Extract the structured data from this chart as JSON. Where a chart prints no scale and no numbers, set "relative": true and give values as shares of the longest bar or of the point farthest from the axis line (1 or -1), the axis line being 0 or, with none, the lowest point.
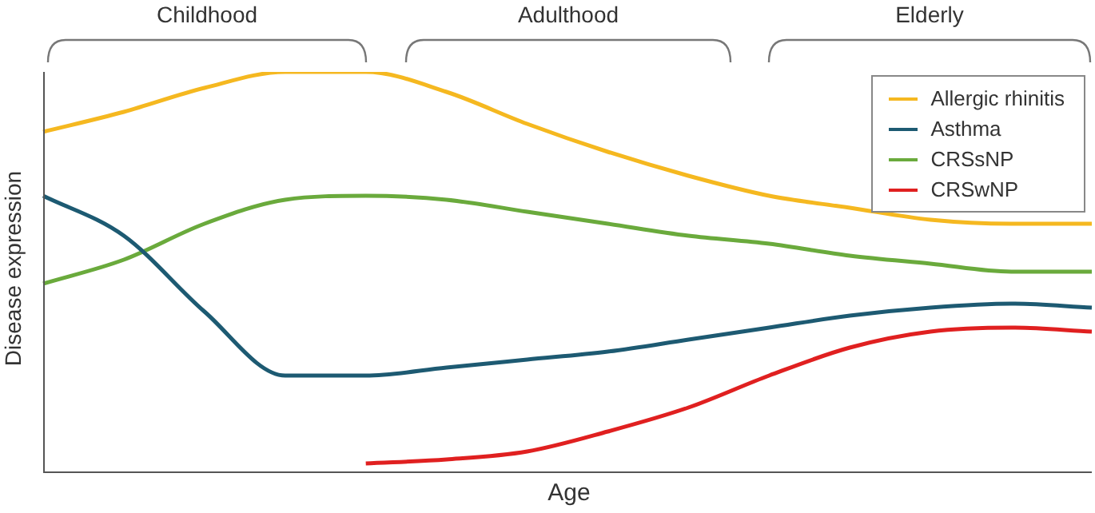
{
  "chart_data": {
    "type": "line",
    "relative": true,
    "xlabel": "Age",
    "ylabel": "Disease expression",
    "annotations": [
      "Childhood",
      "Adulthood",
      "Elderly"
    ],
    "legend": "top right",
    "marker": "none",
    "line_style": "solid",
    "categories": [
      null,
      null,
      null,
      null,
      null,
      null,
      null,
      null,
      null,
      null,
      null,
      null,
      null,
      null
    ],
    "series": [
      {
        "name": "Allergic rhinitis",
        "color": "#f5b820",
        "values": [
          0.85,
          0.9,
          0.96,
          1.0,
          1.0,
          0.95,
          0.87,
          0.8,
          0.74,
          0.69,
          0.66,
          0.63,
          0.62,
          0.62
        ]
      },
      {
        "name": "Asthma",
        "color": "#1d5a72",
        "values": [
          0.69,
          0.59,
          0.4,
          0.24,
          0.24,
          0.26,
          0.28,
          0.3,
          0.33,
          0.36,
          0.39,
          0.41,
          0.42,
          0.41
        ]
      },
      {
        "name": "CRSsNP",
        "color": "#6aaa3c",
        "values": [
          0.47,
          0.53,
          0.62,
          0.68,
          0.69,
          0.68,
          0.65,
          0.62,
          0.59,
          0.57,
          0.54,
          0.52,
          0.5,
          0.5
        ]
      },
      {
        "name": "CRSwNP",
        "color": "#e02020",
        "values": [
          null,
          null,
          null,
          null,
          0.02,
          0.03,
          0.05,
          0.1,
          0.16,
          0.24,
          0.31,
          0.35,
          0.36,
          0.35
        ]
      }
    ]
  }
}
